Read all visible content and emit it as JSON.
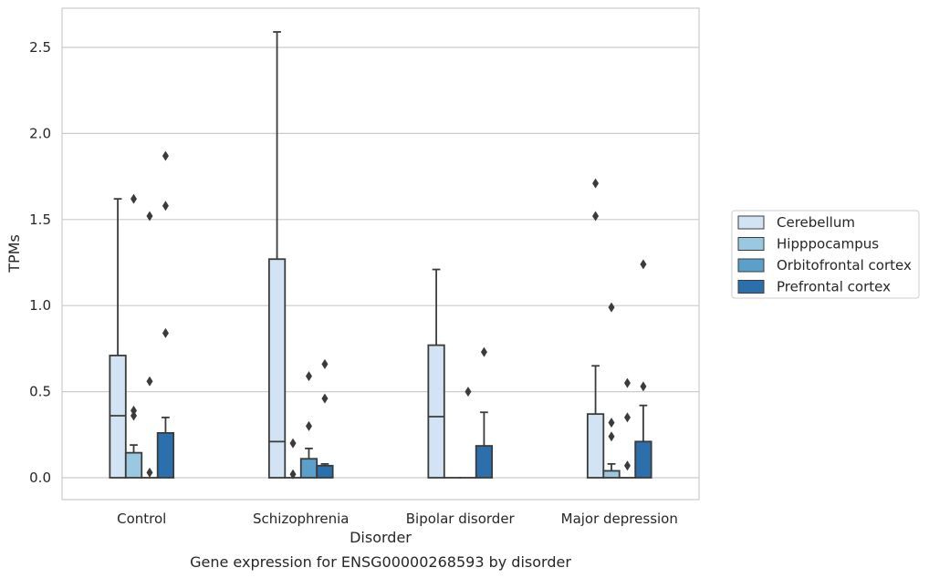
{
  "chart_data": {
    "type": "box",
    "caption": "Gene expression for ENSG00000268593 by disorder",
    "xlabel": "Disorder",
    "ylabel": "TPMs",
    "ylim": [
      -0.13,
      2.73
    ],
    "yticks": [
      "0.0",
      "0.5",
      "1.0",
      "1.5",
      "2.0",
      "2.5"
    ],
    "grid": true,
    "legend_position": "right",
    "categories": [
      "Control",
      "Schizophrenia",
      "Bipolar disorder",
      "Major depression"
    ],
    "series": [
      {
        "name": "Cerebellum",
        "color": "#d2e3f3",
        "boxes": [
          {
            "q1": 0,
            "median": 0.36,
            "q3": 0.71,
            "whisker_low": 0,
            "whisker_high": 1.62,
            "outliers": []
          },
          {
            "q1": 0,
            "median": 0.21,
            "q3": 1.27,
            "whisker_low": 0,
            "whisker_high": 2.59,
            "outliers": []
          },
          {
            "q1": 0,
            "median": 0.355,
            "q3": 0.77,
            "whisker_low": 0,
            "whisker_high": 1.21,
            "outliers": []
          },
          {
            "q1": 0,
            "median": 0.0,
            "q3": 0.37,
            "whisker_low": 0,
            "whisker_high": 0.65,
            "outliers": [
              1.52,
              1.71
            ]
          }
        ]
      },
      {
        "name": "Hipppocampus",
        "color": "#9ac8e0",
        "boxes": [
          {
            "q1": 0,
            "median": 0.0,
            "q3": 0.145,
            "whisker_low": 0,
            "whisker_high": 0.19,
            "outliers": [
              0.36,
              0.39,
              1.62
            ]
          },
          {
            "q1": 0,
            "median": 0.0,
            "q3": 0.0,
            "whisker_low": 0,
            "whisker_high": 0,
            "outliers": [
              0.02,
              0.2
            ]
          },
          {
            "q1": 0,
            "median": 0.0,
            "q3": 0.0,
            "whisker_low": 0,
            "whisker_high": 0,
            "outliers": []
          },
          {
            "q1": 0,
            "median": 0.0,
            "q3": 0.04,
            "whisker_low": 0,
            "whisker_high": 0.08,
            "outliers": [
              0.24,
              0.32,
              0.99
            ]
          }
        ]
      },
      {
        "name": "Orbitofrontal cortex",
        "color": "#5ba0cb",
        "boxes": [
          {
            "q1": 0,
            "median": 0.0,
            "q3": 0.0,
            "whisker_low": 0,
            "whisker_high": 0,
            "outliers": [
              0.03,
              0.56,
              1.52
            ]
          },
          {
            "q1": 0,
            "median": 0.0,
            "q3": 0.11,
            "whisker_low": 0,
            "whisker_high": 0.17,
            "outliers": [
              0.3,
              0.59
            ]
          },
          {
            "q1": 0,
            "median": 0.0,
            "q3": 0.0,
            "whisker_low": 0,
            "whisker_high": 0,
            "outliers": [
              0.5
            ]
          },
          {
            "q1": 0,
            "median": 0.0,
            "q3": 0.0,
            "whisker_low": 0,
            "whisker_high": 0,
            "outliers": [
              0.07,
              0.35,
              0.55
            ]
          }
        ]
      },
      {
        "name": "Prefrontal cortex",
        "color": "#2b6fad",
        "boxes": [
          {
            "q1": 0,
            "median": 0.0,
            "q3": 0.26,
            "whisker_low": 0,
            "whisker_high": 0.35,
            "outliers": [
              0.84,
              1.58,
              1.87
            ]
          },
          {
            "q1": 0,
            "median": 0.0,
            "q3": 0.07,
            "whisker_low": 0,
            "whisker_high": 0.08,
            "outliers": [
              0.46,
              0.66
            ]
          },
          {
            "q1": 0,
            "median": 0.0,
            "q3": 0.185,
            "whisker_low": 0,
            "whisker_high": 0.38,
            "outliers": [
              0.73
            ]
          },
          {
            "q1": 0,
            "median": 0.0,
            "q3": 0.21,
            "whisker_low": 0,
            "whisker_high": 0.42,
            "outliers": [
              0.53,
              1.24
            ]
          }
        ]
      }
    ]
  }
}
